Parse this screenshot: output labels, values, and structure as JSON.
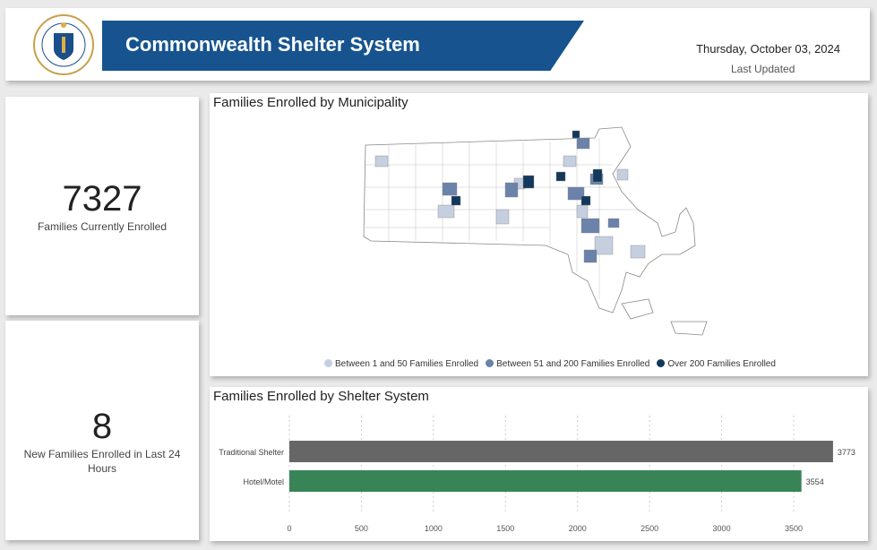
{
  "header": {
    "title": "Commonwealth Shelter System",
    "date": "Thursday, October 03, 2024",
    "last_updated_label": "Last Updated",
    "seal_text": "SIGILLUM REIPUBLICAE MASSACHUSETTENSIS"
  },
  "kpis": [
    {
      "value": "7327",
      "label": "Families Currently Enrolled"
    },
    {
      "value": "8",
      "label": "New Families Enrolled in Last 24 Hours"
    }
  ],
  "map": {
    "title": "Families Enrolled by Municipality",
    "legend": [
      {
        "label": "Between 1 and 50 Families Enrolled",
        "color": "#c5cfe0"
      },
      {
        "label": "Between 51 and 200 Families Enrolled",
        "color": "#6b82aa"
      },
      {
        "label": "Over 200 Families Enrolled",
        "color": "#13385c"
      }
    ]
  },
  "chart_data": {
    "type": "bar",
    "orientation": "horizontal",
    "title": "Families Enrolled by Shelter System",
    "categories": [
      "Traditional Shelter",
      "Hotel/Motel"
    ],
    "values": [
      3773,
      3554
    ],
    "colors": [
      "#666666",
      "#388457"
    ],
    "xlim": [
      0,
      3773
    ],
    "xticks": [
      0,
      500,
      1000,
      1500,
      2000,
      2500,
      3000,
      3500
    ],
    "grid": true,
    "xlabel": "",
    "ylabel": ""
  }
}
